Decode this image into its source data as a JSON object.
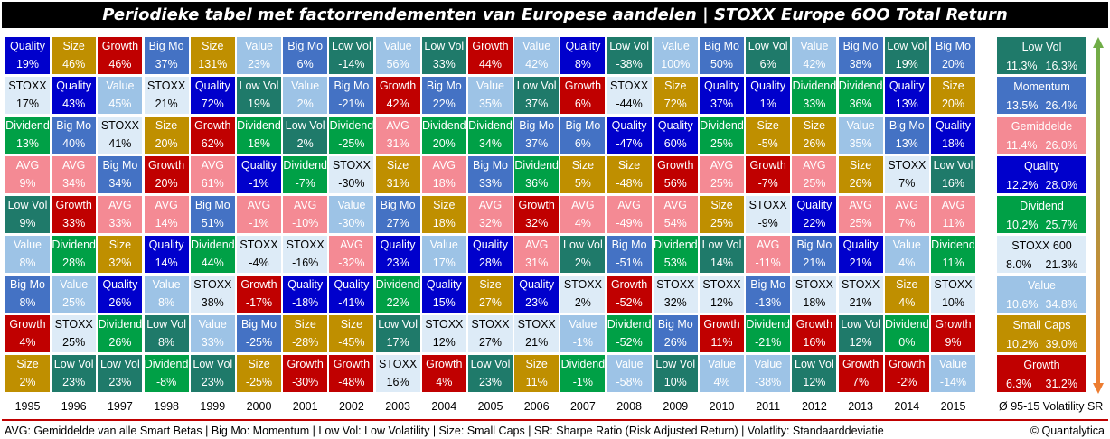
{
  "title": "Periodieke tabel met factorrendementen van Europese aandelen | STOXX Europe 6OO Total Return",
  "colors": {
    "Quality": {
      "bg": "#0000cc",
      "fg": "#ffffff"
    },
    "Size": {
      "bg": "#bf8f00",
      "fg": "#ffffff"
    },
    "Growth": {
      "bg": "#c00000",
      "fg": "#ffffff"
    },
    "Big Mo": {
      "bg": "#4472c4",
      "fg": "#ffffff"
    },
    "Value": {
      "bg": "#9dc3e6",
      "fg": "#ffffff"
    },
    "Low Vol": {
      "bg": "#1f7a6a",
      "fg": "#ffffff"
    },
    "STOXX": {
      "bg": "#ddebf7",
      "fg": "#000000"
    },
    "Dividend": {
      "bg": "#00a046",
      "fg": "#ffffff"
    },
    "AVG": {
      "bg": "#f48a94",
      "fg": "#ffffff"
    }
  },
  "chart_data": {
    "type": "table",
    "years": [
      "1995",
      "1996",
      "1997",
      "1998",
      "1999",
      "2000",
      "2001",
      "2002",
      "2003",
      "2004",
      "2005",
      "2006",
      "2007",
      "2008",
      "2009",
      "2010",
      "2011",
      "2012",
      "2013",
      "2014",
      "2015"
    ],
    "columns": [
      [
        [
          "Quality",
          "19%"
        ],
        [
          "STOXX",
          "17%"
        ],
        [
          "Dividend",
          "13%"
        ],
        [
          "AVG",
          "9%"
        ],
        [
          "Low Vol",
          "9%"
        ],
        [
          "Value",
          "8%"
        ],
        [
          "Big Mo",
          "8%"
        ],
        [
          "Growth",
          "4%"
        ],
        [
          "Size",
          "2%"
        ]
      ],
      [
        [
          "Size",
          "46%"
        ],
        [
          "Quality",
          "43%"
        ],
        [
          "Big Mo",
          "40%"
        ],
        [
          "AVG",
          "34%"
        ],
        [
          "Growth",
          "33%"
        ],
        [
          "Dividend",
          "28%"
        ],
        [
          "Value",
          "25%"
        ],
        [
          "STOXX",
          "25%"
        ],
        [
          "Low Vol",
          "23%"
        ]
      ],
      [
        [
          "Growth",
          "46%"
        ],
        [
          "Value",
          "45%"
        ],
        [
          "STOXX",
          "41%"
        ],
        [
          "Big Mo",
          "34%"
        ],
        [
          "AVG",
          "33%"
        ],
        [
          "Size",
          "32%"
        ],
        [
          "Quality",
          "26%"
        ],
        [
          "Dividend",
          "26%"
        ],
        [
          "Low Vol",
          "23%"
        ]
      ],
      [
        [
          "Big Mo",
          "37%"
        ],
        [
          "STOXX",
          "21%"
        ],
        [
          "Size",
          "20%"
        ],
        [
          "Growth",
          "20%"
        ],
        [
          "AVG",
          "14%"
        ],
        [
          "Quality",
          "14%"
        ],
        [
          "Value",
          "8%"
        ],
        [
          "Low Vol",
          "8%"
        ],
        [
          "Dividend",
          "-8%"
        ]
      ],
      [
        [
          "Size",
          "131%"
        ],
        [
          "Quality",
          "72%"
        ],
        [
          "Growth",
          "62%"
        ],
        [
          "AVG",
          "61%"
        ],
        [
          "Big Mo",
          "51%"
        ],
        [
          "Dividend",
          "44%"
        ],
        [
          "STOXX",
          "38%"
        ],
        [
          "Value",
          "33%"
        ],
        [
          "Low Vol",
          "23%"
        ]
      ],
      [
        [
          "Value",
          "23%"
        ],
        [
          "Low Vol",
          "19%"
        ],
        [
          "Dividend",
          "18%"
        ],
        [
          "Quality",
          "-1%"
        ],
        [
          "AVG",
          "-1%"
        ],
        [
          "STOXX",
          "-4%"
        ],
        [
          "Growth",
          "-17%"
        ],
        [
          "Big Mo",
          "-25%"
        ],
        [
          "Size",
          "-25%"
        ]
      ],
      [
        [
          "Big Mo",
          "6%"
        ],
        [
          "Value",
          "2%"
        ],
        [
          "Low Vol",
          "2%"
        ],
        [
          "Dividend",
          "-7%"
        ],
        [
          "AVG",
          "-10%"
        ],
        [
          "STOXX",
          "-16%"
        ],
        [
          "Quality",
          "-18%"
        ],
        [
          "Size",
          "-28%"
        ],
        [
          "Growth",
          "-30%"
        ]
      ],
      [
        [
          "Low Vol",
          "-14%"
        ],
        [
          "Big Mo",
          "-21%"
        ],
        [
          "Dividend",
          "-25%"
        ],
        [
          "STOXX",
          "-30%"
        ],
        [
          "Value",
          "-30%"
        ],
        [
          "AVG",
          "-32%"
        ],
        [
          "Quality",
          "-41%"
        ],
        [
          "Size",
          "-45%"
        ],
        [
          "Growth",
          "-48%"
        ]
      ],
      [
        [
          "Value",
          "56%"
        ],
        [
          "Growth",
          "42%"
        ],
        [
          "AVG",
          "31%"
        ],
        [
          "Size",
          "31%"
        ],
        [
          "Big Mo",
          "27%"
        ],
        [
          "Quality",
          "23%"
        ],
        [
          "Dividend",
          "22%"
        ],
        [
          "Low Vol",
          "17%"
        ],
        [
          "STOXX",
          "16%"
        ]
      ],
      [
        [
          "Low Vol",
          "33%"
        ],
        [
          "Big Mo",
          "22%"
        ],
        [
          "Dividend",
          "20%"
        ],
        [
          "AVG",
          "18%"
        ],
        [
          "Size",
          "18%"
        ],
        [
          "Value",
          "17%"
        ],
        [
          "Quality",
          "15%"
        ],
        [
          "STOXX",
          "12%"
        ],
        [
          "Growth",
          "4%"
        ]
      ],
      [
        [
          "Growth",
          "44%"
        ],
        [
          "Value",
          "35%"
        ],
        [
          "Dividend",
          "34%"
        ],
        [
          "Big Mo",
          "33%"
        ],
        [
          "AVG",
          "32%"
        ],
        [
          "Quality",
          "28%"
        ],
        [
          "Size",
          "27%"
        ],
        [
          "STOXX",
          "27%"
        ],
        [
          "Low Vol",
          "23%"
        ]
      ],
      [
        [
          "Value",
          "42%"
        ],
        [
          "Low Vol",
          "37%"
        ],
        [
          "Big Mo",
          "37%"
        ],
        [
          "Dividend",
          "36%"
        ],
        [
          "Growth",
          "32%"
        ],
        [
          "AVG",
          "31%"
        ],
        [
          "Quality",
          "23%"
        ],
        [
          "STOXX",
          "21%"
        ],
        [
          "Size",
          "11%"
        ]
      ],
      [
        [
          "Quality",
          "8%"
        ],
        [
          "Growth",
          "6%"
        ],
        [
          "Big Mo",
          "6%"
        ],
        [
          "Size",
          "5%"
        ],
        [
          "AVG",
          "4%"
        ],
        [
          "Low Vol",
          "2%"
        ],
        [
          "STOXX",
          "2%"
        ],
        [
          "Value",
          "-1%"
        ],
        [
          "Dividend",
          "-1%"
        ]
      ],
      [
        [
          "Low Vol",
          "-38%"
        ],
        [
          "STOXX",
          "-44%"
        ],
        [
          "Quality",
          "-47%"
        ],
        [
          "Size",
          "-48%"
        ],
        [
          "AVG",
          "-49%"
        ],
        [
          "Big Mo",
          "-51%"
        ],
        [
          "Growth",
          "-52%"
        ],
        [
          "Dividend",
          "-52%"
        ],
        [
          "Value",
          "-58%"
        ]
      ],
      [
        [
          "Value",
          "100%"
        ],
        [
          "Size",
          "72%"
        ],
        [
          "Quality",
          "60%"
        ],
        [
          "Growth",
          "56%"
        ],
        [
          "AVG",
          "54%"
        ],
        [
          "Dividend",
          "53%"
        ],
        [
          "STOXX",
          "32%"
        ],
        [
          "Big Mo",
          "26%"
        ],
        [
          "Low Vol",
          "10%"
        ]
      ],
      [
        [
          "Big Mo",
          "50%"
        ],
        [
          "Quality",
          "37%"
        ],
        [
          "Dividend",
          "25%"
        ],
        [
          "AVG",
          "25%"
        ],
        [
          "Size",
          "25%"
        ],
        [
          "Low Vol",
          "14%"
        ],
        [
          "STOXX",
          "12%"
        ],
        [
          "Growth",
          "11%"
        ],
        [
          "Value",
          "4%"
        ]
      ],
      [
        [
          "Low Vol",
          "6%"
        ],
        [
          "Quality",
          "1%"
        ],
        [
          "Size",
          "-5%"
        ],
        [
          "Growth",
          "-7%"
        ],
        [
          "STOXX",
          "-9%"
        ],
        [
          "AVG",
          "-11%"
        ],
        [
          "Big Mo",
          "-13%"
        ],
        [
          "Dividend",
          "-21%"
        ],
        [
          "Value",
          "-38%"
        ]
      ],
      [
        [
          "Value",
          "42%"
        ],
        [
          "Dividend",
          "33%"
        ],
        [
          "Size",
          "26%"
        ],
        [
          "AVG",
          "25%"
        ],
        [
          "Quality",
          "22%"
        ],
        [
          "Big Mo",
          "21%"
        ],
        [
          "STOXX",
          "18%"
        ],
        [
          "Growth",
          "16%"
        ],
        [
          "Low Vol",
          "12%"
        ]
      ],
      [
        [
          "Big Mo",
          "38%"
        ],
        [
          "Dividend",
          "36%"
        ],
        [
          "Value",
          "35%"
        ],
        [
          "Size",
          "26%"
        ],
        [
          "AVG",
          "25%"
        ],
        [
          "Quality",
          "21%"
        ],
        [
          "STOXX",
          "21%"
        ],
        [
          "Low Vol",
          "12%"
        ],
        [
          "Growth",
          "7%"
        ]
      ],
      [
        [
          "Low Vol",
          "19%"
        ],
        [
          "Quality",
          "13%"
        ],
        [
          "Big Mo",
          "13%"
        ],
        [
          "STOXX",
          "7%"
        ],
        [
          "AVG",
          "7%"
        ],
        [
          "Value",
          "4%"
        ],
        [
          "Size",
          "4%"
        ],
        [
          "Dividend",
          "0%"
        ],
        [
          "Growth",
          "-2%"
        ]
      ],
      [
        [
          "Big Mo",
          "20%"
        ],
        [
          "Size",
          "20%"
        ],
        [
          "Quality",
          "18%"
        ],
        [
          "Low Vol",
          "16%"
        ],
        [
          "AVG",
          "11%"
        ],
        [
          "Dividend",
          "11%"
        ],
        [
          "STOXX",
          "10%"
        ],
        [
          "Growth",
          "9%"
        ],
        [
          "Value",
          "-14%"
        ]
      ]
    ],
    "summary": [
      {
        "name": "Low Vol",
        "key": "Low Vol",
        "avg": "11.3%",
        "vol": "16.3%"
      },
      {
        "name": "Momentum",
        "key": "Big Mo",
        "avg": "13.5%",
        "vol": "26.4%"
      },
      {
        "name": "Gemiddelde",
        "key": "AVG",
        "avg": "11.4%",
        "vol": "26.0%"
      },
      {
        "name": "Quality",
        "key": "Quality",
        "avg": "12.2%",
        "vol": "28.0%"
      },
      {
        "name": "Dividend",
        "key": "Dividend",
        "avg": "10.2%",
        "vol": "25.7%"
      },
      {
        "name": "STOXX 600",
        "key": "STOXX",
        "avg": "8.0%",
        "vol": "21.3%"
      },
      {
        "name": "Value",
        "key": "Value",
        "avg": "10.6%",
        "vol": "34.8%"
      },
      {
        "name": "Small Caps",
        "key": "Size",
        "avg": "10.2%",
        "vol": "39.0%"
      },
      {
        "name": "Growth",
        "key": "Growth",
        "avg": "6.3%",
        "vol": "31.2%"
      }
    ],
    "summary_footer": "Ø 95-15 Volatility SR"
  },
  "legend": "AVG: Gemiddelde van alle Smart Betas  |  Big Mo: Momentum  |  Low Vol: Low Volatility  |  Size: Small Caps  |  SR: Sharpe Ratio (Risk Adjusted Return)  |  Volatlity: Standaarddeviatie",
  "credit": "© Quantalytica"
}
